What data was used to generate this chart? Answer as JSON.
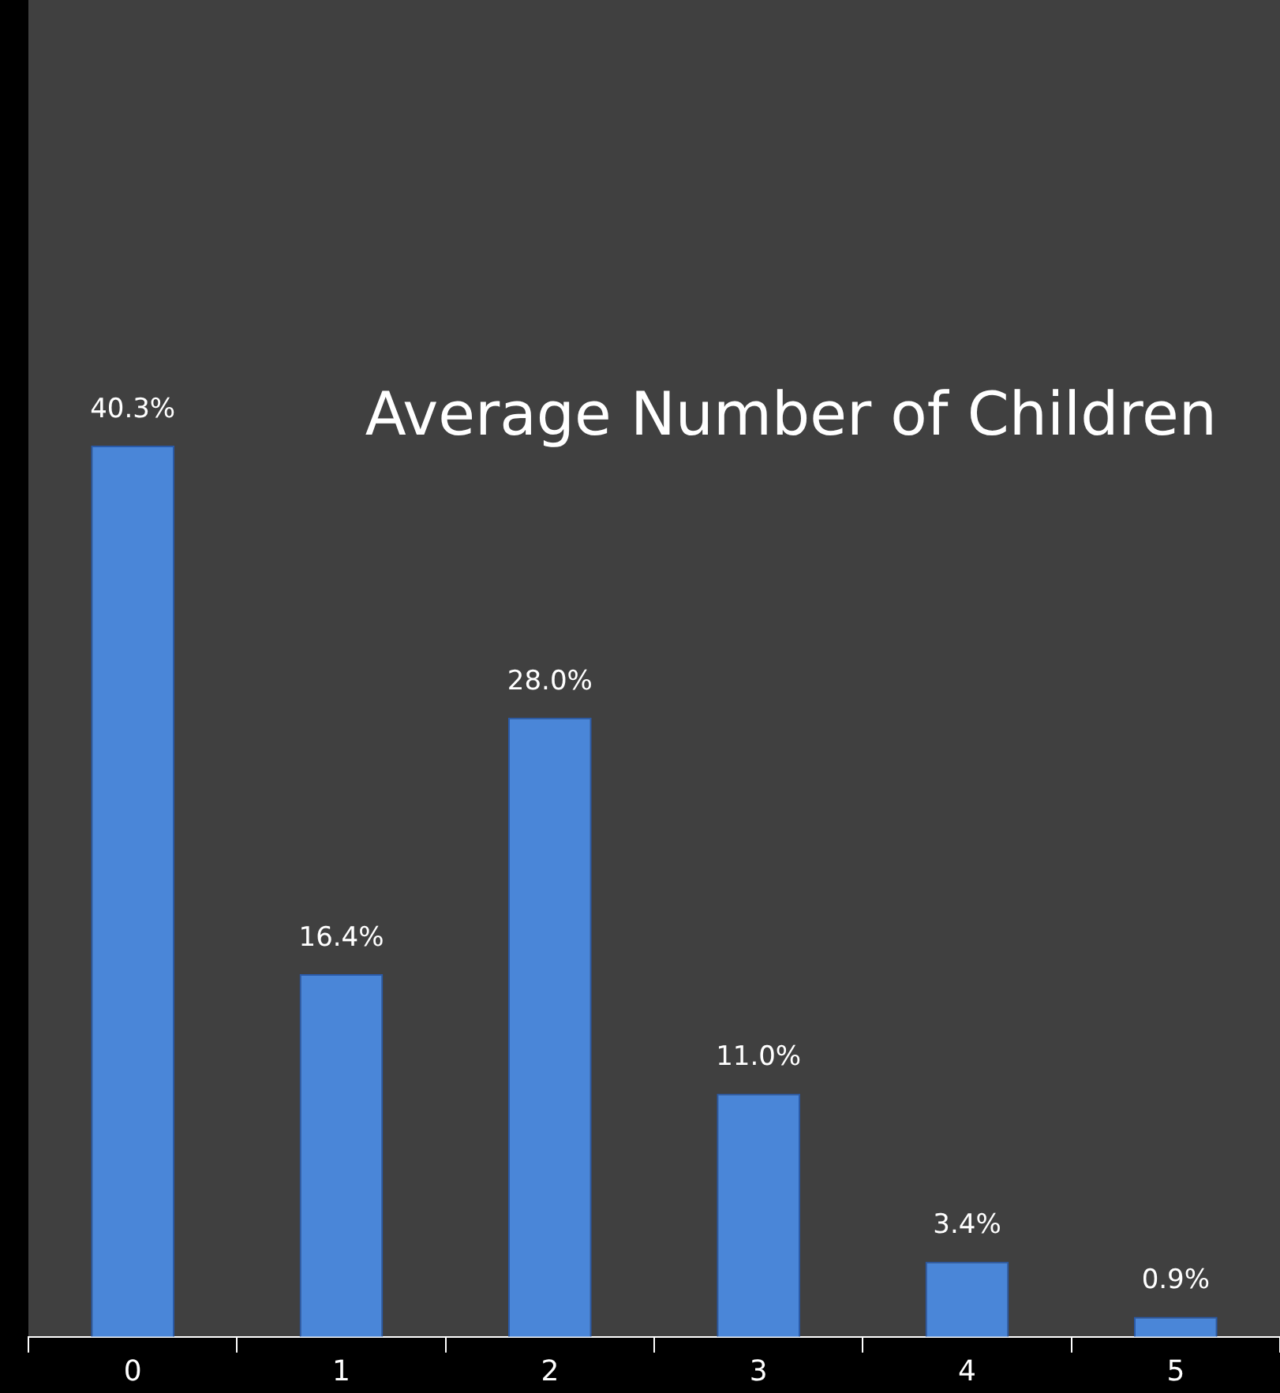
{
  "chart_data": {
    "type": "bar",
    "title": "Average Number of Children",
    "categories": [
      "0",
      "1",
      "2",
      "3",
      "4",
      "5"
    ],
    "values": [
      40.3,
      16.4,
      28.0,
      11.0,
      3.4,
      0.9
    ],
    "value_labels": [
      "40.3%",
      "16.4%",
      "28.0%",
      "11.0%",
      "3.4%",
      "0.9%"
    ],
    "color": "#4a86d8"
  }
}
